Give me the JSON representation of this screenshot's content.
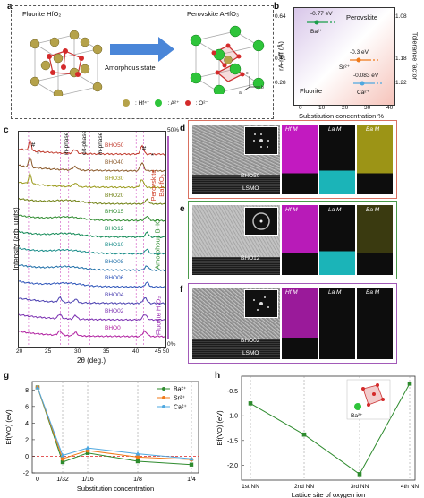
{
  "panel_labels": {
    "a": "a",
    "b": "b",
    "c": "c",
    "d": "d",
    "e": "e",
    "f": "f",
    "g": "g",
    "h": "h"
  },
  "panel_a": {
    "left_title": "Fluorite HfO₂",
    "right_title": "Perovskite AHfO₃",
    "arrow_label": "Amorphous state",
    "legend": [
      {
        "label": ": Hf⁴⁺",
        "color": "#b5a24a"
      },
      {
        "label": ": A²⁺",
        "color": "#2ec43a"
      },
      {
        "label": ": O²⁻",
        "color": "#d42a2a"
      }
    ],
    "axes": {
      "b": "b",
      "c": "c",
      "a": "a"
    }
  },
  "panel_b": {
    "region_top": "Perovskite",
    "region_bottom": "Fluorite",
    "ylabel_left": "rA-reff (Å)",
    "ylabel_right": "Tolerance factor",
    "xlabel": "Substitution concentration %",
    "points": [
      {
        "energy": "-0.77 eV",
        "ion": "Ba²⁺",
        "color": "#1a9e4a"
      },
      {
        "energy": "-0.3 eV",
        "ion": "Sr²⁺",
        "color": "#f07a1a"
      },
      {
        "energy": "-0.083 eV",
        "ion": "Ca²⁺",
        "color": "#4fa8e0"
      }
    ]
  },
  "panel_c": {
    "xlabel": "2θ (deg.)",
    "ylabel": "Intensity (arb. units)",
    "top_pct": "50%",
    "bottom_pct": "0%",
    "phase_labels": [
      "m-phase",
      "o/t-phase",
      "m-phase"
    ],
    "markers": [
      "#",
      "*",
      "#",
      "*"
    ],
    "right_groups": [
      "Perovskite BaHfO₃",
      "Amorphous BHO",
      "Fluorite HfO₂"
    ],
    "samples": [
      "BHO50",
      "BHO40",
      "BHO30",
      "BHO20",
      "BHO15",
      "BHO12",
      "BHO10",
      "BHO08",
      "BHO06",
      "BHO04",
      "BHO02",
      "BHO0"
    ],
    "colors": [
      "#c0392b",
      "#8b5a2b",
      "#9a9a1a",
      "#6e7f10",
      "#2e8b2e",
      "#118a55",
      "#138a86",
      "#1f6fa8",
      "#2a52b8",
      "#4a3fb0",
      "#7a2fb0",
      "#b020a0"
    ],
    "arrow_label": "Hf"
  },
  "panel_d": {
    "map_labels": [
      "Hf M",
      "La M",
      "Ba M"
    ],
    "sample": "BHO50",
    "substrate": "LSMO"
  },
  "panel_e": {
    "map_labels": [
      "Hf M",
      "La M",
      "Ba M"
    ],
    "sample": "BHO12"
  },
  "panel_f": {
    "map_labels": [
      "Hf M",
      "La M",
      "Ba M"
    ],
    "sample": "BHO02",
    "substrate": "LSMO"
  },
  "panel_g": {
    "xlabel": "Substitution concentration",
    "ylabel": "Ef(VO) (eV)",
    "chart_data": {
      "type": "line",
      "categories": [
        "0",
        "1/32",
        "1/16",
        "1/8",
        "1/4"
      ],
      "series": [
        {
          "name": "Ba²⁺",
          "color": "#2e8b2e",
          "values": [
            8.3,
            -0.7,
            0.4,
            -0.6,
            -1.0
          ]
        },
        {
          "name": "Sr²⁺",
          "color": "#f07a1a",
          "values": [
            8.3,
            -0.3,
            0.7,
            -0.1,
            -0.4
          ]
        },
        {
          "name": "Ca²⁺",
          "color": "#4fa8e0",
          "values": [
            8.3,
            0.1,
            1.0,
            0.3,
            -0.3
          ]
        }
      ],
      "ylim": [
        -2,
        9
      ],
      "yticks": [
        "-2",
        "0",
        "2",
        "4",
        "6",
        "8"
      ]
    }
  },
  "panel_h": {
    "xlabel": "Lattice site of oxygen ion",
    "ylabel": "Ef(VO) (eV)",
    "inset_label": "Ba²⁺",
    "chart_data": {
      "type": "line",
      "categories": [
        "1st NN",
        "2nd NN",
        "3rd NN",
        "4th NN"
      ],
      "series": [
        {
          "color": "#2e8b2e",
          "values": [
            -0.75,
            -1.38,
            -2.18,
            -0.35
          ]
        }
      ],
      "ylim": [
        -2.3,
        -0.2
      ],
      "yticks": [
        "-0.5",
        "-1.0",
        "-1.5",
        "-2.0"
      ]
    }
  }
}
